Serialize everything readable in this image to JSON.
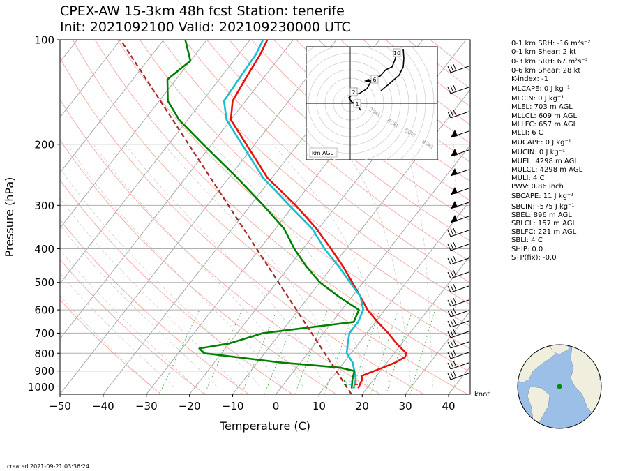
{
  "title": {
    "line1": "CPEX-AW 15-3km  48h fcst  Station: tenerife",
    "line2": "Init: 2021092100  Valid: 202109230000 UTC"
  },
  "parameters": [
    "0-1 km SRH: -16 m²s⁻²",
    "0-1 km Shear: 2 kt",
    "0-3 km SRH: 67 m²s⁻²",
    "0-6 km Shear: 28 kt",
    "K-index: -1",
    "MLCAPE: 0 J kg⁻¹",
    "MLCIN: 0 J kg⁻¹",
    "MLEL: 703 m AGL",
    "MLLCL: 609 m AGL",
    "MLLFC: 657 m AGL",
    "MLLI: 6 C",
    "MUCAPE: 0 J kg⁻¹",
    "MUCIN: 0 J kg⁻¹",
    "MUEL: 4298 m AGL",
    "MULCL: 4298 m AGL",
    "MULI: 4 C",
    "PWV: 0.86 inch",
    "SBCAPE: 11 J kg⁻¹",
    "SBCIN: -575 J kg⁻¹",
    "SBEL: 896 m AGL",
    "SBLCL: 157 m AGL",
    "SBLFC: 221 m AGL",
    "SBLI: 4 C",
    "SHIP: 0.0",
    "STP(fix): -0.0"
  ],
  "footer": {
    "created": "created 2021-09-21 03:36:24",
    "knot_label": "knot"
  },
  "colors": {
    "temperature": "#e8120c",
    "dewpoint": "#008000",
    "wetbulb": "#17becf",
    "parcel": "#a52a2a",
    "isobar": "#b0b0b0",
    "isotherm": "#a0a0a0",
    "dry_adiabat": "#f4a8a0",
    "mixing_ratio": "#2ca02c",
    "ocean": "#9bbfe6",
    "land": "#f0eedc"
  },
  "chart_data": {
    "type": "line",
    "subtype": "skew-t log-p",
    "xlabel": "Temperature (C)",
    "ylabel": "Pressure (hPa)",
    "x_ticks": [
      -50,
      -40,
      -30,
      -20,
      -10,
      0,
      10,
      20,
      30,
      40
    ],
    "y_ticks": [
      100,
      200,
      300,
      400,
      500,
      600,
      700,
      800,
      900,
      1000
    ],
    "xlim": [
      -50,
      45
    ],
    "ylim_hpa": [
      1050,
      100
    ],
    "surface_labels": {
      "dewpoint": "5",
      "wetbulb": "5",
      "temperature": "1"
    },
    "series": [
      {
        "key": "temperature",
        "points": [
          [
            1010,
            18.0
          ],
          [
            950,
            17.3
          ],
          [
            930,
            16.5
          ],
          [
            880,
            20.0
          ],
          [
            850,
            22.0
          ],
          [
            820,
            23.2
          ],
          [
            800,
            22.8
          ],
          [
            750,
            18.8
          ],
          [
            700,
            15.0
          ],
          [
            650,
            10.5
          ],
          [
            600,
            6.0
          ],
          [
            550,
            2.0
          ],
          [
            500,
            -2.5
          ],
          [
            450,
            -7.5
          ],
          [
            400,
            -13.5
          ],
          [
            350,
            -20.5
          ],
          [
            300,
            -29.5
          ],
          [
            250,
            -41.0
          ],
          [
            200,
            -52.0
          ],
          [
            170,
            -60.0
          ],
          [
            150,
            -63.0
          ],
          [
            130,
            -64.0
          ],
          [
            110,
            -65.0
          ],
          [
            100,
            -66.0
          ]
        ]
      },
      {
        "key": "wetbulb",
        "points": [
          [
            1010,
            17.0
          ],
          [
            950,
            15.8
          ],
          [
            900,
            14.0
          ],
          [
            850,
            12.0
          ],
          [
            800,
            9.0
          ],
          [
            750,
            7.5
          ],
          [
            700,
            6.0
          ],
          [
            650,
            6.0
          ],
          [
            600,
            5.0
          ],
          [
            550,
            2.0
          ],
          [
            500,
            -3.0
          ],
          [
            450,
            -8.5
          ],
          [
            400,
            -15.0
          ],
          [
            350,
            -21.5
          ],
          [
            300,
            -31.0
          ],
          [
            250,
            -42.0
          ],
          [
            200,
            -53.0
          ],
          [
            170,
            -61.0
          ],
          [
            150,
            -65.0
          ],
          [
            130,
            -65.5
          ],
          [
            110,
            -66.0
          ],
          [
            100,
            -67.0
          ]
        ]
      },
      {
        "key": "dewpoint",
        "points": [
          [
            1010,
            16.5
          ],
          [
            950,
            15.0
          ],
          [
            900,
            14.0
          ],
          [
            880,
            10.0
          ],
          [
            850,
            -5.0
          ],
          [
            800,
            -24.0
          ],
          [
            775,
            -26.0
          ],
          [
            750,
            -20.0
          ],
          [
            700,
            -14.0
          ],
          [
            650,
            5.0
          ],
          [
            600,
            4.0
          ],
          [
            550,
            -3.0
          ],
          [
            500,
            -10.0
          ],
          [
            450,
            -16.0
          ],
          [
            400,
            -22.0
          ],
          [
            350,
            -28.0
          ],
          [
            300,
            -37.0
          ],
          [
            250,
            -48.0
          ],
          [
            200,
            -62.0
          ],
          [
            170,
            -72.0
          ],
          [
            150,
            -78.0
          ],
          [
            130,
            -82.0
          ],
          [
            115,
            -80.0
          ],
          [
            100,
            -85.0
          ]
        ]
      },
      {
        "key": "parcel",
        "points": [
          [
            1050,
            17.5
          ],
          [
            100,
            -100.0
          ]
        ]
      }
    ],
    "hodograph": {
      "label": "km AGL",
      "height_labels": [
        "1",
        "2",
        "6",
        "10"
      ],
      "ring_labels": [
        "20kt",
        "40kt",
        "60kt",
        "80kt"
      ]
    },
    "wind_barbs_units": "knot"
  }
}
